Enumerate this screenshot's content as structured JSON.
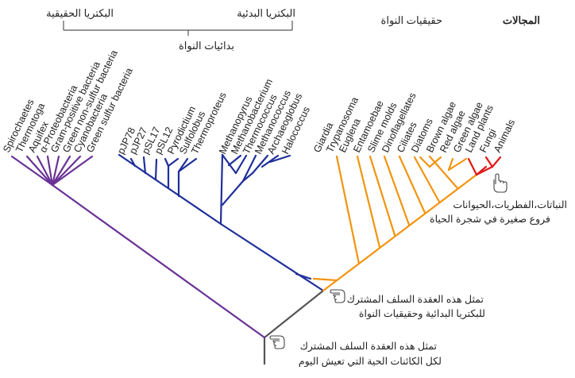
{
  "header": {
    "domains_label": "المجالات",
    "eukaryota_label": "حقيقيات النواة",
    "archaea_label": "البكتريا البدئية",
    "bacteria_label": "البكتريا الحقيقية",
    "prokaryotes_label": "بدائيات النواة"
  },
  "colors": {
    "bacteria": "#6a3296",
    "archaea": "#1f2f9a",
    "eukaryota": "#f2940f",
    "plants_animals": "#e01818",
    "root": "#555555"
  },
  "bacteria_leaves": [
    "Spirochaetes",
    "Thermotoga",
    "Aquifex",
    "α-Proteobacteria",
    "Gram-positive bacteria",
    "Green non-sulfur bacteria",
    "Cyanobacteria",
    "Green sulfur bacteria"
  ],
  "archaea_leaves": [
    "pJP78",
    "pJP27",
    "pSL17",
    "pSL12",
    "Pyrodictium",
    "Sulfolobus",
    "Thermoproteus",
    "Methanopyrus",
    "Methanobacterium",
    "Thermococcus",
    "Methanococcus",
    "Archaeoglobus",
    "Halococcus"
  ],
  "eukaryota_leaves": [
    "Giardia",
    "Trypanosoma",
    "Euglena",
    "Entamoebae",
    "Slime molds",
    "Dinoflagellates",
    "Ciliates",
    "Diatoms",
    "Brown algae",
    "Red algae",
    "Green algae",
    "Land plants",
    "Fungi",
    "Animals"
  ],
  "notes": {
    "plants_line1": "النباتات،الفطريات،الحيوانات",
    "plants_line2": "فروع صغيرة في شجرة الحياة",
    "node_line1": "تمثل هذه العقدة السلف المشترك",
    "node_line2": "للبكتريا البدائية وحقيقيات النواة",
    "root_line1": "تمثل هذه العقدة السلف المشترك",
    "root_line2": "لكل الكائنات الحية التي تعيش اليوم"
  },
  "icons": [
    "pointing-hand-icon"
  ]
}
